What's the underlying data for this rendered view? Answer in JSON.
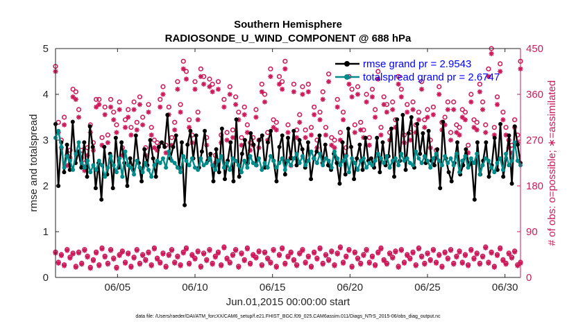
{
  "chart_data": {
    "type": "line",
    "title": "Southern Hemisphere",
    "subtitle": "RADIOSONDE_U_WIND_COMPONENT @ 688 hPa",
    "xlabel": "Jun.01,2015 00:00:00 start",
    "ylabel": "rmse and totalspread",
    "ylabel_right": "# of obs: o=possible; ∗=assimilated",
    "footnote": "data file: /Users/raeder/DAI/ATM_forcXX/CAM6_setup/f.e21.FHIST_BGC.f09_025.CAM6assim.011/Diags_NTrS_2015-06/obs_diag_output.nc",
    "xlim": [
      1,
      31
    ],
    "ylim": [
      0,
      5
    ],
    "ylim_right": [
      0,
      450
    ],
    "xtick_values": [
      5,
      10,
      15,
      20,
      25,
      30
    ],
    "xtick_labels": [
      "06/05",
      "06/10",
      "06/15",
      "06/20",
      "06/25",
      "06/30"
    ],
    "ytick_values": [
      0,
      1,
      2,
      3,
      4,
      5
    ],
    "ytick_labels": [
      "0",
      "1",
      "2",
      "3",
      "4",
      "5"
    ],
    "ytick_right_values": [
      0,
      90,
      180,
      270,
      360,
      450
    ],
    "ytick_right_labels": [
      "0",
      "90",
      "180",
      "270",
      "360",
      "450"
    ],
    "colors": {
      "rmse": "#000000",
      "spread": "#008b8b",
      "obs": "#cc1a5a",
      "legend_text": "#0000ff"
    },
    "series": [
      {
        "name": "rmse grand pr = 2.9543",
        "color": "#000000",
        "marker": "filled-circle",
        "values": [
          3.35,
          2.0,
          2.95,
          2.3,
          2.9,
          2.35,
          3.4,
          2.5,
          2.75,
          2.4,
          2.95,
          2.2,
          3.3,
          2.85,
          1.95,
          2.5,
          1.7,
          2.85,
          2.25,
          2.7,
          1.95,
          3.05,
          2.4,
          2.95,
          2.5,
          2.0,
          2.6,
          2.35,
          3.1,
          2.5,
          2.1,
          2.8,
          2.45,
          3.0,
          2.6,
          2.2,
          2.85,
          2.95,
          2.85,
          3.55,
          2.6,
          2.85,
          3.1,
          2.4,
          2.95,
          1.58,
          2.9,
          3.2,
          2.6,
          3.1,
          2.4,
          2.75,
          3.2,
          2.55,
          2.7,
          2.1,
          2.8,
          2.3,
          3.25,
          2.15,
          2.55,
          2.95,
          2.1,
          3.45,
          2.2,
          2.7,
          3.0,
          2.5,
          3.15,
          2.9,
          2.45,
          3.0,
          3.1,
          2.4,
          2.95,
          3.2,
          2.55,
          2.1,
          2.85,
          3.1,
          2.25,
          3.05,
          2.6,
          3.2,
          2.45,
          3.0,
          2.8,
          2.4,
          2.95,
          2.15,
          2.6,
          2.75,
          3.1,
          2.5,
          2.9,
          2.45,
          2.35,
          2.7,
          2.5,
          2.05,
          2.95,
          2.25,
          3.25,
          2.85,
          2.15,
          2.6,
          2.9,
          2.35,
          3.05,
          2.55,
          2.6,
          2.4,
          3.05,
          2.3,
          2.95,
          2.45,
          2.65,
          3.25,
          2.2,
          3.45,
          2.55,
          3.55,
          2.35,
          3.15,
          3.5,
          2.4,
          3.35,
          2.7,
          3.15,
          2.5,
          3.2,
          2.55,
          2.45,
          2.8,
          1.95,
          3.4,
          2.6,
          2.3,
          2.1,
          2.5,
          2.95,
          2.25,
          2.45,
          2.8,
          2.45,
          2.5,
          1.7,
          2.95,
          2.25,
          2.55,
          2.95,
          2.2,
          2.45,
          3.05,
          2.35,
          3.35,
          2.2,
          2.6,
          3.1,
          2.05,
          3.3,
          2.9,
          2.5
        ]
      },
      {
        "name": "totalspread grand pr = 2.6747",
        "color": "#008b8b",
        "marker": "filled-circle",
        "values": [
          3.05,
          3.2,
          2.85,
          2.4,
          2.65,
          2.55,
          2.35,
          2.7,
          2.95,
          2.5,
          2.4,
          2.55,
          2.3,
          2.45,
          2.35,
          2.55,
          2.45,
          2.2,
          2.4,
          2.65,
          2.45,
          2.3,
          2.6,
          2.2,
          2.75,
          2.45,
          2.4,
          2.25,
          2.55,
          2.4,
          2.3,
          2.5,
          2.35,
          2.2,
          2.45,
          2.55,
          2.5,
          2.6,
          2.4,
          2.75,
          2.55,
          2.5,
          2.4,
          2.3,
          2.65,
          2.55,
          2.45,
          2.6,
          2.4,
          2.35,
          2.6,
          2.45,
          2.5,
          2.6,
          2.45,
          2.35,
          2.55,
          2.65,
          2.4,
          2.5,
          2.35,
          2.6,
          2.55,
          2.45,
          2.3,
          2.55,
          2.4,
          2.65,
          2.5,
          2.45,
          2.6,
          2.35,
          2.5,
          2.4,
          2.65,
          2.55,
          2.4,
          2.5,
          2.6,
          2.35,
          2.55,
          2.45,
          2.6,
          2.7,
          2.5,
          2.65,
          2.45,
          2.55,
          2.75,
          2.6,
          2.5,
          2.7,
          2.45,
          2.6,
          2.55,
          2.4,
          2.75,
          2.6,
          2.45,
          2.55,
          2.65,
          2.3,
          2.6,
          2.5,
          2.35,
          2.55,
          2.6,
          2.4,
          2.5,
          2.45,
          2.55,
          2.7,
          2.6,
          2.5,
          2.65,
          2.4,
          2.55,
          2.6,
          2.45,
          2.7,
          2.55,
          2.6,
          2.5,
          2.45,
          2.75,
          2.6,
          2.5,
          2.65,
          2.55,
          2.4,
          2.6,
          2.7,
          2.55,
          2.45,
          2.65,
          2.5,
          2.6,
          2.45,
          2.7,
          2.3,
          2.55,
          2.65,
          2.4,
          2.6,
          2.5,
          2.7,
          2.25,
          2.45,
          2.6,
          2.55,
          2.4,
          2.3,
          2.5,
          2.6,
          2.35,
          2.7,
          2.45,
          2.55,
          2.95,
          2.55,
          2.45
        ]
      },
      {
        "name": "obs possible",
        "color": "#cc1a5a",
        "marker": "open-circle",
        "values": [
          415,
          305,
          270,
          315,
          240,
          250,
          370,
          365,
          330,
          250,
          225,
          255,
          300,
          265,
          350,
          350,
          275,
          335,
          280,
          350,
          325,
          300,
          345,
          255,
          310,
          330,
          295,
          345,
          305,
          355,
          315,
          255,
          340,
          295,
          270,
          265,
          350,
          375,
          260,
          335,
          275,
          305,
          385,
          340,
          425,
          405,
          310,
          280,
          385,
          325,
          410,
          395,
          275,
          390,
          380,
          240,
          385,
          280,
          350,
          285,
          375,
          290,
          355,
          325,
          275,
          335,
          300,
          265,
          275,
          330,
          270,
          380,
          360,
          285,
          410,
          310,
          305,
          395,
          385,
          425,
          300,
          235,
          380,
          290,
          320,
          375,
          290,
          380,
          295,
          335,
          270,
          325,
          365,
          295,
          400,
          275,
          270,
          350,
          285,
          325,
          255,
          395,
          370,
          300,
          375,
          305,
          290,
          360,
          275,
          370,
          330,
          405,
          295,
          355,
          340,
          285,
          345,
          310,
          395,
          370,
          280,
          340,
          285,
          345,
          300,
          325,
          385,
          310,
          330,
          270,
          335,
          250,
          375,
          305,
          315,
          345,
          285,
          345,
          300,
          295,
          330,
          325,
          260,
          360,
          310,
          305,
          380,
          345,
          300,
          410,
          450,
          295,
          355,
          420,
          325,
          295,
          270,
          260,
          310,
          280,
          425
        ]
      },
      {
        "name": "obs assimilated",
        "color": "#cc1a5a",
        "marker": "asterisk",
        "values": [
          405,
          285,
          255,
          300,
          220,
          235,
          355,
          350,
          315,
          235,
          210,
          240,
          285,
          250,
          335,
          340,
          260,
          320,
          265,
          335,
          310,
          285,
          330,
          240,
          295,
          315,
          280,
          330,
          290,
          340,
          300,
          240,
          325,
          280,
          255,
          250,
          335,
          360,
          245,
          320,
          260,
          290,
          370,
          325,
          410,
          390,
          295,
          265,
          370,
          310,
          395,
          380,
          260,
          375,
          365,
          225,
          370,
          265,
          335,
          270,
          360,
          275,
          340,
          310,
          260,
          320,
          285,
          250,
          260,
          315,
          255,
          365,
          345,
          270,
          395,
          295,
          290,
          380,
          370,
          410,
          285,
          220,
          365,
          275,
          305,
          360,
          275,
          365,
          280,
          320,
          255,
          310,
          350,
          280,
          385,
          260,
          255,
          335,
          270,
          310,
          240,
          380,
          355,
          285,
          360,
          290,
          275,
          345,
          260,
          355,
          315,
          390,
          280,
          340,
          325,
          270,
          330,
          295,
          380,
          355,
          265,
          325,
          270,
          330,
          285,
          310,
          370,
          295,
          315,
          255,
          320,
          235,
          360,
          290,
          300,
          330,
          270,
          330,
          285,
          280,
          315,
          310,
          245,
          345,
          295,
          290,
          365,
          330,
          285,
          395,
          440,
          280,
          340,
          405,
          310,
          280,
          255,
          245,
          295,
          265,
          410
        ]
      },
      {
        "name": "obs possible (low)",
        "color": "#cc1a5a",
        "marker": "open-circle",
        "values": [
          50,
          30,
          45,
          25,
          55,
          40,
          48,
          22,
          50,
          28,
          55,
          42,
          20,
          35,
          50,
          25,
          58,
          42,
          28,
          55,
          38,
          20,
          45,
          52,
          30,
          48,
          22,
          40,
          55,
          28,
          45,
          35,
          50,
          25,
          58,
          38,
          30,
          48,
          22,
          45,
          55,
          30,
          42,
          25,
          50,
          58,
          28,
          45,
          38,
          52,
          22,
          48,
          35,
          55,
          28,
          42,
          50,
          25,
          60,
          38,
          30,
          45,
          55,
          22,
          48,
          35,
          58,
          28,
          45,
          40,
          52,
          25,
          50,
          38,
          30,
          55,
          22,
          45,
          58,
          28,
          42,
          50,
          35,
          25,
          48,
          55,
          30,
          42,
          22,
          50,
          38,
          58,
          28,
          45,
          35,
          52,
          25,
          48,
          60,
          30,
          42,
          55,
          22,
          50,
          38,
          28,
          45,
          55,
          30,
          42,
          25,
          50,
          58,
          35,
          28,
          48,
          40,
          52,
          22,
          55,
          30,
          45,
          38,
          50,
          25,
          58,
          42,
          28,
          48,
          35,
          55,
          30,
          45,
          22,
          50,
          38,
          55,
          28,
          42,
          52,
          30,
          45,
          25,
          55,
          38,
          48,
          28,
          42,
          60,
          30,
          50,
          22,
          45,
          58,
          35,
          28,
          48,
          40,
          52,
          25,
          30
        ]
      },
      {
        "name": "obs assimilated (low)",
        "color": "#cc1a5a",
        "marker": "asterisk",
        "values": [
          48,
          28,
          43,
          23,
          53,
          38,
          46,
          20,
          48,
          26,
          53,
          40,
          18,
          33,
          48,
          23,
          56,
          40,
          26,
          53,
          36,
          18,
          43,
          50,
          28,
          46,
          20,
          38,
          53,
          26,
          43,
          33,
          48,
          23,
          56,
          36,
          28,
          46,
          20,
          43,
          53,
          28,
          40,
          23,
          48,
          56,
          26,
          43,
          36,
          50,
          20,
          46,
          33,
          53,
          26,
          40,
          48,
          23,
          58,
          36,
          28,
          43,
          53,
          20,
          46,
          33,
          56,
          26,
          43,
          38,
          50,
          23,
          48,
          36,
          28,
          53,
          20,
          43,
          56,
          26,
          40,
          48,
          33,
          23,
          46,
          53,
          28,
          40,
          20,
          48,
          36,
          56,
          26,
          43,
          33,
          50,
          23,
          46,
          58,
          28,
          40,
          53,
          20,
          48,
          36,
          26,
          43,
          53,
          28,
          40,
          23,
          48,
          56,
          33,
          26,
          46,
          38,
          50,
          20,
          53,
          28,
          43,
          36,
          48,
          23,
          56,
          40,
          26,
          46,
          33,
          53,
          28,
          43,
          20,
          48,
          36,
          53,
          26,
          40,
          50,
          28,
          43,
          23,
          53,
          36,
          46,
          26,
          40,
          58,
          28,
          48,
          20,
          43,
          56,
          33,
          26,
          46,
          38,
          50,
          23,
          28
        ]
      }
    ]
  }
}
